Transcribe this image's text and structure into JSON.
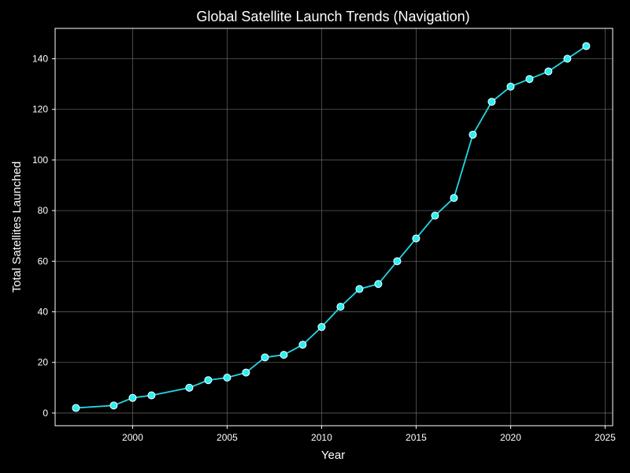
{
  "chart_data": {
    "type": "line",
    "title": "Global Satellite Launch Trends (Navigation)",
    "xlabel": "Year",
    "ylabel": "Total Satellites Launched",
    "xlim": [
      1995.9,
      2025.4
    ],
    "ylim": [
      -5,
      152
    ],
    "xticks": [
      2000,
      2005,
      2010,
      2015,
      2020,
      2025
    ],
    "yticks": [
      0,
      20,
      40,
      60,
      80,
      100,
      120,
      140
    ],
    "grid": true,
    "legend": "none",
    "colors": {
      "background": "#000000",
      "axes_face": "#000000",
      "line": "#22d8e6",
      "marker_fill": "#2cf0f2",
      "marker_edge": "#ffffff",
      "grid": "#7a7a7a",
      "spine": "#ffffff",
      "text": "#ffffff"
    },
    "series": [
      {
        "x": [
          1997,
          1999,
          2000,
          2001,
          2003,
          2004,
          2005,
          2006,
          2007,
          2008,
          2009,
          2010,
          2011,
          2012,
          2013,
          2014,
          2015,
          2016,
          2017,
          2018,
          2019,
          2020,
          2021,
          2022,
          2023,
          2024
        ],
        "values": [
          2,
          3,
          6,
          7,
          10,
          13,
          14,
          16,
          22,
          23,
          27,
          34,
          42,
          49,
          51,
          60,
          69,
          78,
          85,
          110,
          123,
          129,
          132,
          135,
          140,
          145
        ]
      }
    ]
  }
}
